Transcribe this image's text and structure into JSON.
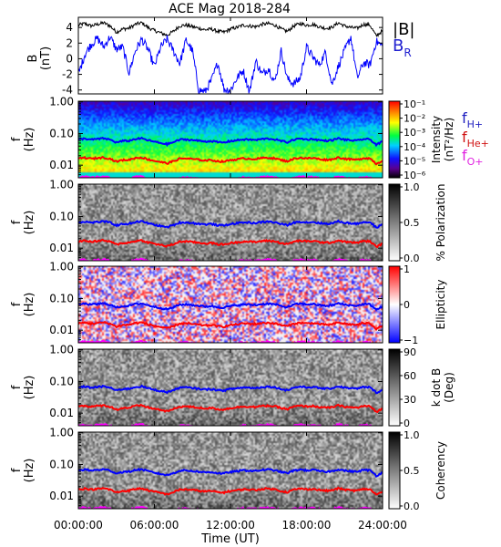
{
  "chart_data": {
    "type": "spectrogram",
    "title": "ACE Mag 2018-284",
    "x": {
      "label": "Time (UT)",
      "range_hours": [
        0,
        24
      ],
      "tick_hours": [
        0,
        6,
        12,
        18,
        24
      ],
      "tick_labels": [
        "00:00:00",
        "06:00:00",
        "12:00:00",
        "18:00:00",
        "24:00:00"
      ]
    },
    "field_panel": {
      "ylabel": "B",
      "yunit": "(nT)",
      "ylim": [
        -4.5,
        5.3
      ],
      "yticks": [
        -4,
        -2,
        0,
        2,
        4
      ],
      "series": [
        {
          "name": "|B|",
          "color": "#000000",
          "t": [
            0,
            0.5,
            1,
            1.5,
            2,
            2.5,
            3,
            3.5,
            4,
            4.5,
            5,
            5.5,
            6,
            6.5,
            7,
            7.5,
            8,
            8.5,
            9,
            9.5,
            10,
            10.5,
            11,
            11.5,
            12,
            12.5,
            13,
            13.5,
            14,
            14.5,
            15,
            15.5,
            16,
            16.5,
            17,
            17.5,
            18,
            18.5,
            19,
            19.5,
            20,
            20.5,
            21,
            21.5,
            22,
            22.5,
            23,
            23.5,
            24
          ],
          "values": [
            4.3,
            4.5,
            4.2,
            4.4,
            4.6,
            4.2,
            3.4,
            3.8,
            3.9,
            4.4,
            4.6,
            4.0,
            3.6,
            3.3,
            3.0,
            3.5,
            4.2,
            4.3,
            4.1,
            3.9,
            3.7,
            3.8,
            3.5,
            3.4,
            3.8,
            4.0,
            4.3,
            4.2,
            4.1,
            4.4,
            4.5,
            4.3,
            3.8,
            3.5,
            4.2,
            4.5,
            4.3,
            4.4,
            4.1,
            3.9,
            4.0,
            4.6,
            4.2,
            4.0,
            3.9,
            4.4,
            4.3,
            2.9,
            3.6
          ]
        },
        {
          "name": "B_R",
          "color": "#0000ff",
          "t": [
            0,
            0.5,
            1,
            1.5,
            2,
            2.5,
            3,
            3.5,
            4,
            4.5,
            5,
            5.5,
            6,
            6.5,
            7,
            7.5,
            8,
            8.5,
            9,
            9.5,
            10,
            10.5,
            11,
            11.5,
            12,
            12.5,
            13,
            13.5,
            14,
            14.5,
            15,
            15.5,
            16,
            16.5,
            17,
            17.5,
            18,
            18.5,
            19,
            19.5,
            20,
            20.5,
            21,
            21.5,
            22,
            22.5,
            23,
            23.5,
            24
          ],
          "values": [
            -2.0,
            0.5,
            1.8,
            2.6,
            1.5,
            2.8,
            1.2,
            1.5,
            -1.8,
            1.0,
            2.5,
            1.2,
            -1.0,
            1.5,
            2.5,
            1.0,
            -0.6,
            2.4,
            1.0,
            -4.0,
            -4.2,
            -2.8,
            -0.5,
            -3.9,
            -4.0,
            -2.5,
            -1.5,
            -4.2,
            -0.3,
            -2.0,
            -1.2,
            -3.0,
            1.0,
            -2.6,
            -3.2,
            -2.5,
            1.5,
            0.2,
            -0.8,
            0.8,
            -3.3,
            -1.0,
            1.0,
            2.8,
            -2.5,
            -0.5,
            -0.8,
            2.2,
            1.6
          ]
        }
      ]
    },
    "spectral_panels": [
      {
        "id": "intensity",
        "colorbar": "rainbow",
        "cbar_title": "Intensity",
        "cbar_unit": "(nT²/Hz)",
        "cbar_ticks": [
          "10⁻¹",
          "10⁻²",
          "10⁻³",
          "10⁻⁴",
          "10⁻⁵",
          "10⁻⁶"
        ]
      },
      {
        "id": "polarization",
        "colorbar": "gray",
        "cbar_title": "% Polarization",
        "cbar_unit": "",
        "cbar_ticks": [
          "1.0",
          "0.5",
          "0.0"
        ]
      },
      {
        "id": "ellipticity",
        "colorbar": "bluewhitered",
        "cbar_title": "Ellipticity",
        "cbar_unit": "",
        "cbar_ticks": [
          "1",
          "0",
          "−1"
        ]
      },
      {
        "id": "kdotb",
        "colorbar": "gray",
        "cbar_title": "k dot B",
        "cbar_unit": "(Deg)",
        "cbar_ticks": [
          "90",
          "60",
          "30",
          "0"
        ]
      },
      {
        "id": "coherency",
        "colorbar": "gray",
        "cbar_title": "Coherency",
        "cbar_unit": "",
        "cbar_ticks": [
          "1.0",
          "0.5",
          "0.0"
        ]
      }
    ],
    "spectral_axis": {
      "ylabel": "f",
      "yunit": "(Hz)",
      "yscale": "log",
      "ylim_hz": [
        0.004,
        1.05
      ],
      "yticks_hz": [
        1.0,
        0.1,
        0.01
      ],
      "ytick_labels": [
        "1.00",
        "0.10",
        "0.01"
      ]
    },
    "gyrofrequencies": {
      "labels": [
        {
          "text": "f",
          "sub": "H+",
          "color": "#2020c0"
        },
        {
          "text": "f",
          "sub": "He+",
          "color": "#d01010"
        },
        {
          "text": "f",
          "sub": "O+",
          "color": "#e020e0"
        }
      ],
      "series": [
        {
          "name": "f H+",
          "color": "#0000ff",
          "t": [
            0,
            0.5,
            1,
            1.5,
            2,
            2.5,
            3,
            3.5,
            4,
            4.5,
            5,
            5.5,
            6,
            6.5,
            7,
            7.5,
            8,
            8.5,
            9,
            9.5,
            10,
            10.5,
            11,
            11.5,
            12,
            12.5,
            13,
            13.5,
            14,
            14.5,
            15,
            15.5,
            16,
            16.5,
            17,
            17.5,
            18,
            18.5,
            19,
            19.5,
            20,
            20.5,
            21,
            21.5,
            22,
            22.5,
            23,
            23.5,
            24
          ],
          "values_hz": [
            0.065,
            0.069,
            0.064,
            0.067,
            0.07,
            0.064,
            0.052,
            0.058,
            0.059,
            0.067,
            0.07,
            0.061,
            0.055,
            0.05,
            0.046,
            0.053,
            0.064,
            0.065,
            0.062,
            0.059,
            0.056,
            0.058,
            0.053,
            0.052,
            0.058,
            0.061,
            0.065,
            0.064,
            0.062,
            0.067,
            0.069,
            0.065,
            0.058,
            0.053,
            0.064,
            0.069,
            0.065,
            0.067,
            0.062,
            0.059,
            0.061,
            0.07,
            0.064,
            0.061,
            0.059,
            0.067,
            0.065,
            0.044,
            0.055
          ]
        },
        {
          "name": "f He+",
          "color": "#ff0000",
          "t": [
            0,
            0.5,
            1,
            1.5,
            2,
            2.5,
            3,
            3.5,
            4,
            4.5,
            5,
            5.5,
            6,
            6.5,
            7,
            7.5,
            8,
            8.5,
            9,
            9.5,
            10,
            10.5,
            11,
            11.5,
            12,
            12.5,
            13,
            13.5,
            14,
            14.5,
            15,
            15.5,
            16,
            16.5,
            17,
            17.5,
            18,
            18.5,
            19,
            19.5,
            20,
            20.5,
            21,
            21.5,
            22,
            22.5,
            23,
            23.5,
            24
          ],
          "values_hz": [
            0.0163,
            0.0172,
            0.016,
            0.0168,
            0.0175,
            0.016,
            0.013,
            0.0145,
            0.0148,
            0.0168,
            0.0175,
            0.0152,
            0.0137,
            0.0126,
            0.0114,
            0.0133,
            0.016,
            0.0163,
            0.0156,
            0.0148,
            0.0141,
            0.0145,
            0.0133,
            0.013,
            0.0145,
            0.0152,
            0.0163,
            0.016,
            0.0156,
            0.0168,
            0.0172,
            0.0163,
            0.0145,
            0.0133,
            0.016,
            0.0172,
            0.0163,
            0.0168,
            0.0156,
            0.0148,
            0.0152,
            0.0175,
            0.016,
            0.0152,
            0.0148,
            0.0168,
            0.0163,
            0.011,
            0.0137
          ]
        },
        {
          "name": "f O+",
          "color": "#ff00ff",
          "t": [
            0,
            0.5,
            1,
            1.5,
            2,
            2.5,
            3,
            3.5,
            4,
            4.5,
            5,
            5.5,
            6,
            6.5,
            7,
            7.5,
            8,
            8.5,
            9,
            9.5,
            10,
            10.5,
            11,
            11.5,
            12,
            12.5,
            13,
            13.5,
            14,
            14.5,
            15,
            15.5,
            16,
            16.5,
            17,
            17.5,
            18,
            18.5,
            19,
            19.5,
            20,
            20.5,
            21,
            21.5,
            22,
            22.5,
            23,
            23.5,
            24
          ],
          "values_hz": [
            0.0041,
            0.0043,
            0.004,
            0.0042,
            0.0044,
            0.004,
            0.0033,
            0.0036,
            0.0037,
            0.0042,
            0.0044,
            0.0038,
            0.0034,
            0.0031,
            0.0029,
            0.0033,
            0.004,
            0.0041,
            0.0039,
            0.0037,
            0.0035,
            0.0036,
            0.0033,
            0.0032,
            0.0036,
            0.0038,
            0.0041,
            0.004,
            0.0039,
            0.0042,
            0.0043,
            0.0041,
            0.0036,
            0.0033,
            0.004,
            0.0043,
            0.0041,
            0.0042,
            0.0039,
            0.0037,
            0.0038,
            0.0044,
            0.004,
            0.0038,
            0.0037,
            0.0042,
            0.0041,
            0.0028,
            0.0034
          ]
        }
      ]
    },
    "field_legend": [
      {
        "text": "|B|",
        "sub": "",
        "color": "#000000"
      },
      {
        "text": "B",
        "sub": "R",
        "color": "#2020d0"
      }
    ]
  }
}
